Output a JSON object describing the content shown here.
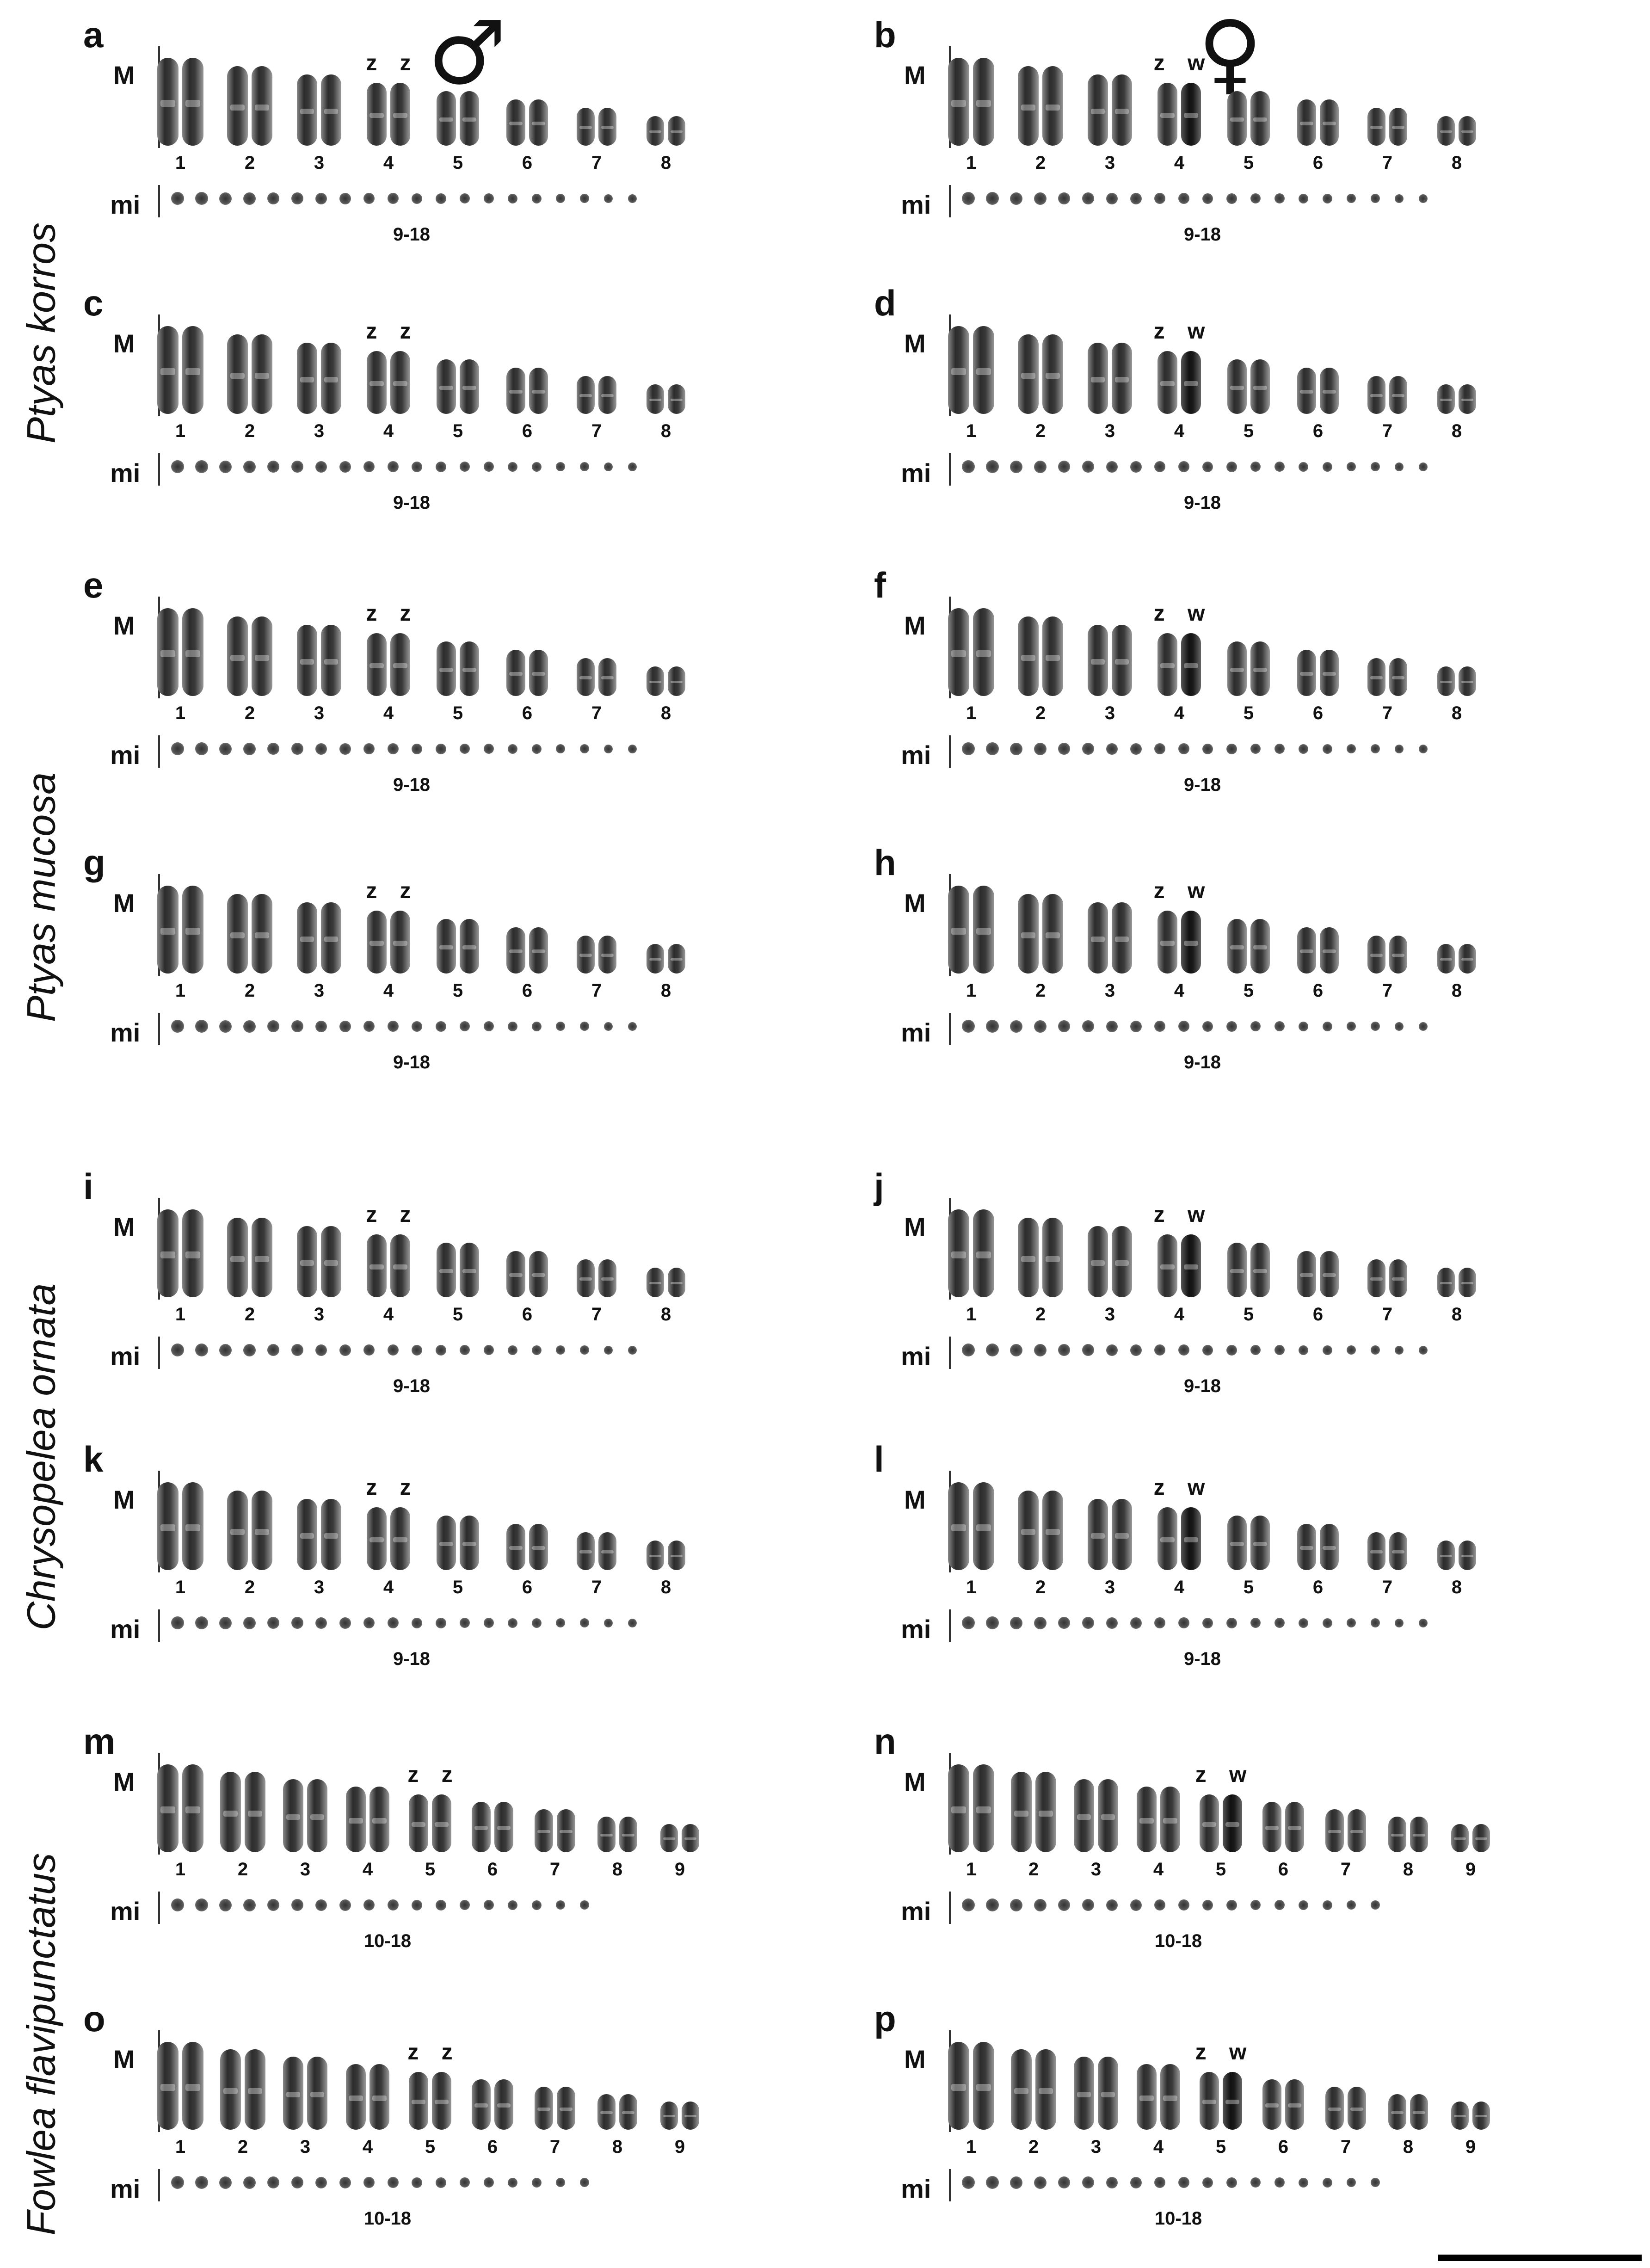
{
  "figure": {
    "sex_symbols": {
      "male": "♂",
      "female": "♀"
    },
    "species": [
      {
        "name": "Ptyas korros",
        "panels": [
          "a",
          "b",
          "c",
          "d"
        ]
      },
      {
        "name": "Ptyas mucosa",
        "panels": [
          "e",
          "f",
          "g",
          "h"
        ]
      },
      {
        "name": "Chrysopelea ornata",
        "panels": [
          "i",
          "j",
          "k",
          "l"
        ]
      },
      {
        "name": "Fowlea flavipunctatus",
        "panels": [
          "m",
          "n",
          "o",
          "p"
        ]
      }
    ],
    "row_labels": {
      "macro": "M",
      "micro": "mi"
    },
    "panels": [
      {
        "letter": "a",
        "sex_chr": "z z",
        "sex_pair": 4,
        "pairs": [
          "1",
          "2",
          "3",
          "4",
          "5",
          "6",
          "7",
          "8"
        ],
        "micro_range": "9-18",
        "micro_count": 20
      },
      {
        "letter": "b",
        "sex_chr": "z w",
        "sex_pair": 4,
        "pairs": [
          "1",
          "2",
          "3",
          "4",
          "5",
          "6",
          "7",
          "8"
        ],
        "micro_range": "9-18",
        "micro_count": 20
      },
      {
        "letter": "c",
        "sex_chr": "z z",
        "sex_pair": 4,
        "pairs": [
          "1",
          "2",
          "3",
          "4",
          "5",
          "6",
          "7",
          "8"
        ],
        "micro_range": "9-18",
        "micro_count": 20
      },
      {
        "letter": "d",
        "sex_chr": "z w",
        "sex_pair": 4,
        "pairs": [
          "1",
          "2",
          "3",
          "4",
          "5",
          "6",
          "7",
          "8"
        ],
        "micro_range": "9-18",
        "micro_count": 20
      },
      {
        "letter": "e",
        "sex_chr": "z z",
        "sex_pair": 4,
        "pairs": [
          "1",
          "2",
          "3",
          "4",
          "5",
          "6",
          "7",
          "8"
        ],
        "micro_range": "9-18",
        "micro_count": 20
      },
      {
        "letter": "f",
        "sex_chr": "z w",
        "sex_pair": 4,
        "pairs": [
          "1",
          "2",
          "3",
          "4",
          "5",
          "6",
          "7",
          "8"
        ],
        "micro_range": "9-18",
        "micro_count": 20
      },
      {
        "letter": "g",
        "sex_chr": "z z",
        "sex_pair": 4,
        "pairs": [
          "1",
          "2",
          "3",
          "4",
          "5",
          "6",
          "7",
          "8"
        ],
        "micro_range": "9-18",
        "micro_count": 20
      },
      {
        "letter": "h",
        "sex_chr": "z w",
        "sex_pair": 4,
        "pairs": [
          "1",
          "2",
          "3",
          "4",
          "5",
          "6",
          "7",
          "8"
        ],
        "micro_range": "9-18",
        "micro_count": 20
      },
      {
        "letter": "i",
        "sex_chr": "z z",
        "sex_pair": 4,
        "pairs": [
          "1",
          "2",
          "3",
          "4",
          "5",
          "6",
          "7",
          "8"
        ],
        "micro_range": "9-18",
        "micro_count": 20
      },
      {
        "letter": "j",
        "sex_chr": "z w",
        "sex_pair": 4,
        "pairs": [
          "1",
          "2",
          "3",
          "4",
          "5",
          "6",
          "7",
          "8"
        ],
        "micro_range": "9-18",
        "micro_count": 20
      },
      {
        "letter": "k",
        "sex_chr": "z z",
        "sex_pair": 4,
        "pairs": [
          "1",
          "2",
          "3",
          "4",
          "5",
          "6",
          "7",
          "8"
        ],
        "micro_range": "9-18",
        "micro_count": 20
      },
      {
        "letter": "l",
        "sex_chr": "z w",
        "sex_pair": 4,
        "pairs": [
          "1",
          "2",
          "3",
          "4",
          "5",
          "6",
          "7",
          "8"
        ],
        "micro_range": "9-18",
        "micro_count": 20
      },
      {
        "letter": "m",
        "sex_chr": "z z",
        "sex_pair": 5,
        "pairs": [
          "1",
          "2",
          "3",
          "4",
          "5",
          "6",
          "7",
          "8",
          "9"
        ],
        "micro_range": "10-18",
        "micro_count": 18
      },
      {
        "letter": "n",
        "sex_chr": "z w",
        "sex_pair": 5,
        "pairs": [
          "1",
          "2",
          "3",
          "4",
          "5",
          "6",
          "7",
          "8",
          "9"
        ],
        "micro_range": "10-18",
        "micro_count": 18
      },
      {
        "letter": "o",
        "sex_chr": "z z",
        "sex_pair": 5,
        "pairs": [
          "1",
          "2",
          "3",
          "4",
          "5",
          "6",
          "7",
          "8",
          "9"
        ],
        "micro_range": "10-18",
        "micro_count": 18
      },
      {
        "letter": "p",
        "sex_chr": "z w",
        "sex_pair": 5,
        "pairs": [
          "1",
          "2",
          "3",
          "4",
          "5",
          "6",
          "7",
          "8",
          "9"
        ],
        "micro_range": "10-18",
        "micro_count": 18
      }
    ]
  }
}
